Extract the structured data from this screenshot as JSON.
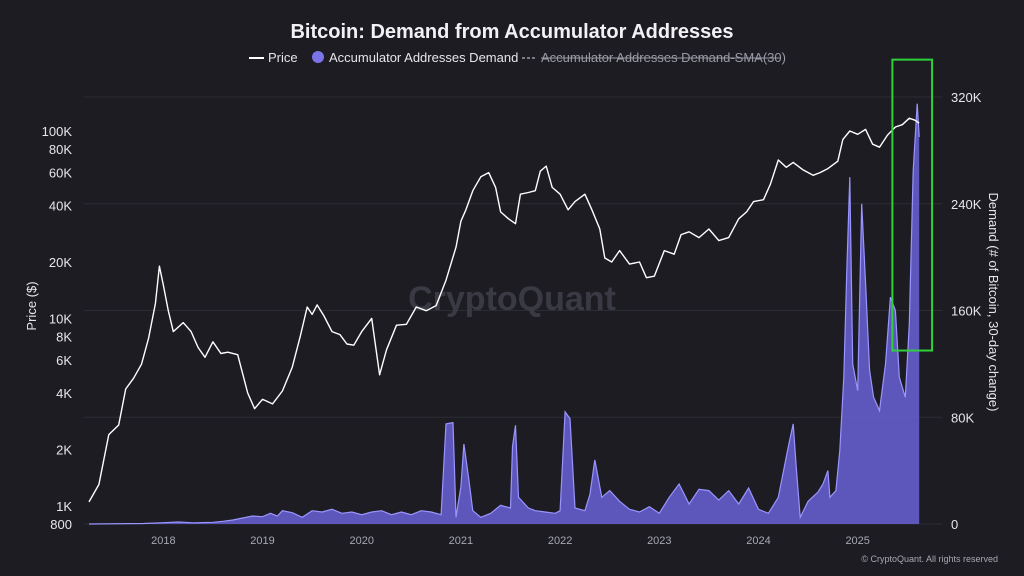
{
  "chart_data": {
    "type": "line",
    "title": "Bitcoin: Demand from Accumulator Addresses",
    "legend": [
      {
        "name": "Price",
        "style": "line",
        "color": "#ffffff"
      },
      {
        "name": "Accumulator Addresses Demand",
        "style": "area",
        "color": "#7b74e8"
      },
      {
        "name": "Accumulator Addresses Demand-SMA(30)",
        "style": "dashed",
        "color": "#9a9aa6",
        "hidden": true
      }
    ],
    "legend_position": "top-center",
    "watermark": "CryptoQuant",
    "copyright": "© CryptoQuant. All rights reserved",
    "x_axis": {
      "ticks": [
        "2018",
        "2019",
        "2020",
        "2021",
        "2022",
        "2023",
        "2024",
        "2025"
      ],
      "range": [
        2017.2,
        2025.85
      ]
    },
    "y_left": {
      "label": "Price ($)",
      "scale": "log",
      "range": [
        800,
        150000
      ],
      "ticks": [
        {
          "value": 800,
          "label": "800"
        },
        {
          "value": 1000,
          "label": "1K"
        },
        {
          "value": 2000,
          "label": "2K"
        },
        {
          "value": 4000,
          "label": "4K"
        },
        {
          "value": 6000,
          "label": "6K"
        },
        {
          "value": 8000,
          "label": "8K"
        },
        {
          "value": 10000,
          "label": "10K"
        },
        {
          "value": 20000,
          "label": "20K"
        },
        {
          "value": 40000,
          "label": "40K"
        },
        {
          "value": 60000,
          "label": "60K"
        },
        {
          "value": 80000,
          "label": "80K"
        },
        {
          "value": 100000,
          "label": "100K"
        }
      ]
    },
    "y_right": {
      "label": "Demand (# of Bitcoin, 30-day change)",
      "scale": "linear",
      "range": [
        0,
        320000
      ],
      "ticks": [
        {
          "value": 0,
          "label": "0"
        },
        {
          "value": 80000,
          "label": "80K"
        },
        {
          "value": 160000,
          "label": "160K"
        },
        {
          "value": 240000,
          "label": "240K"
        },
        {
          "value": 320000,
          "label": "320K"
        }
      ]
    },
    "grid": "horizontal",
    "highlight_box": {
      "color": "#2fd13b",
      "x_range": [
        2025.35,
        2025.75
      ],
      "y_right_range": [
        130000,
        348000
      ]
    },
    "series": [
      {
        "name": "Price",
        "axis": "left",
        "points": [
          [
            2017.25,
            1050
          ],
          [
            2017.35,
            1300
          ],
          [
            2017.45,
            2400
          ],
          [
            2017.55,
            2700
          ],
          [
            2017.62,
            4200
          ],
          [
            2017.7,
            4800
          ],
          [
            2017.78,
            5700
          ],
          [
            2017.85,
            7800
          ],
          [
            2017.92,
            12000
          ],
          [
            2017.96,
            19000
          ],
          [
            2018.0,
            15000
          ],
          [
            2018.05,
            11000
          ],
          [
            2018.1,
            8500
          ],
          [
            2018.2,
            9500
          ],
          [
            2018.28,
            8500
          ],
          [
            2018.35,
            7000
          ],
          [
            2018.42,
            6200
          ],
          [
            2018.5,
            7500
          ],
          [
            2018.58,
            6500
          ],
          [
            2018.65,
            6600
          ],
          [
            2018.75,
            6400
          ],
          [
            2018.85,
            4000
          ],
          [
            2018.92,
            3300
          ],
          [
            2019.0,
            3700
          ],
          [
            2019.1,
            3500
          ],
          [
            2019.2,
            4100
          ],
          [
            2019.3,
            5500
          ],
          [
            2019.38,
            8000
          ],
          [
            2019.45,
            11500
          ],
          [
            2019.5,
            10500
          ],
          [
            2019.55,
            11800
          ],
          [
            2019.62,
            10300
          ],
          [
            2019.7,
            8500
          ],
          [
            2019.78,
            8200
          ],
          [
            2019.85,
            7300
          ],
          [
            2019.92,
            7200
          ],
          [
            2020.0,
            8500
          ],
          [
            2020.1,
            10000
          ],
          [
            2020.18,
            5000
          ],
          [
            2020.25,
            6800
          ],
          [
            2020.35,
            9200
          ],
          [
            2020.45,
            9300
          ],
          [
            2020.55,
            11500
          ],
          [
            2020.65,
            11000
          ],
          [
            2020.75,
            11700
          ],
          [
            2020.85,
            16000
          ],
          [
            2020.95,
            24000
          ],
          [
            2021.0,
            33000
          ],
          [
            2021.05,
            38000
          ],
          [
            2021.12,
            48000
          ],
          [
            2021.2,
            57000
          ],
          [
            2021.28,
            60000
          ],
          [
            2021.35,
            50000
          ],
          [
            2021.4,
            37000
          ],
          [
            2021.48,
            34000
          ],
          [
            2021.55,
            32000
          ],
          [
            2021.6,
            46000
          ],
          [
            2021.68,
            47000
          ],
          [
            2021.75,
            48000
          ],
          [
            2021.8,
            61000
          ],
          [
            2021.86,
            65000
          ],
          [
            2021.92,
            50000
          ],
          [
            2022.0,
            46000
          ],
          [
            2022.08,
            38000
          ],
          [
            2022.15,
            42000
          ],
          [
            2022.25,
            46000
          ],
          [
            2022.32,
            38000
          ],
          [
            2022.4,
            30000
          ],
          [
            2022.45,
            21000
          ],
          [
            2022.52,
            20000
          ],
          [
            2022.6,
            23000
          ],
          [
            2022.7,
            19500
          ],
          [
            2022.8,
            20000
          ],
          [
            2022.87,
            16500
          ],
          [
            2022.95,
            16800
          ],
          [
            2023.05,
            23000
          ],
          [
            2023.15,
            22000
          ],
          [
            2023.22,
            28000
          ],
          [
            2023.3,
            29000
          ],
          [
            2023.4,
            27000
          ],
          [
            2023.5,
            30000
          ],
          [
            2023.6,
            26000
          ],
          [
            2023.7,
            27000
          ],
          [
            2023.8,
            34000
          ],
          [
            2023.88,
            37000
          ],
          [
            2023.95,
            42000
          ],
          [
            2024.05,
            43000
          ],
          [
            2024.12,
            52000
          ],
          [
            2024.2,
            70000
          ],
          [
            2024.28,
            64000
          ],
          [
            2024.35,
            68000
          ],
          [
            2024.45,
            62000
          ],
          [
            2024.55,
            58000
          ],
          [
            2024.62,
            60000
          ],
          [
            2024.7,
            63000
          ],
          [
            2024.8,
            69000
          ],
          [
            2024.85,
            90000
          ],
          [
            2024.92,
            100000
          ],
          [
            2025.0,
            96000
          ],
          [
            2025.08,
            102000
          ],
          [
            2025.15,
            85000
          ],
          [
            2025.22,
            82000
          ],
          [
            2025.3,
            95000
          ],
          [
            2025.38,
            105000
          ],
          [
            2025.45,
            108000
          ],
          [
            2025.52,
            117000
          ],
          [
            2025.58,
            114000
          ],
          [
            2025.62,
            110000
          ]
        ]
      },
      {
        "name": "Accumulator Addresses Demand",
        "axis": "right",
        "points": [
          [
            2017.25,
            0
          ],
          [
            2017.8,
            400
          ],
          [
            2018.0,
            1000
          ],
          [
            2018.15,
            1500
          ],
          [
            2018.3,
            900
          ],
          [
            2018.5,
            1300
          ],
          [
            2018.6,
            2000
          ],
          [
            2018.7,
            3000
          ],
          [
            2018.8,
            4500
          ],
          [
            2018.9,
            6000
          ],
          [
            2019.0,
            5500
          ],
          [
            2019.08,
            8000
          ],
          [
            2019.15,
            6000
          ],
          [
            2019.2,
            10000
          ],
          [
            2019.3,
            8500
          ],
          [
            2019.4,
            5000
          ],
          [
            2019.5,
            10000
          ],
          [
            2019.6,
            9000
          ],
          [
            2019.7,
            11000
          ],
          [
            2019.8,
            8000
          ],
          [
            2019.9,
            9000
          ],
          [
            2020.0,
            7000
          ],
          [
            2020.1,
            9000
          ],
          [
            2020.2,
            10000
          ],
          [
            2020.3,
            7000
          ],
          [
            2020.4,
            9000
          ],
          [
            2020.5,
            7000
          ],
          [
            2020.6,
            10000
          ],
          [
            2020.7,
            9000
          ],
          [
            2020.8,
            7000
          ],
          [
            2020.85,
            75000
          ],
          [
            2020.92,
            76000
          ],
          [
            2020.95,
            5000
          ],
          [
            2021.0,
            28000
          ],
          [
            2021.03,
            60000
          ],
          [
            2021.08,
            33000
          ],
          [
            2021.12,
            10000
          ],
          [
            2021.2,
            5000
          ],
          [
            2021.3,
            8000
          ],
          [
            2021.4,
            14000
          ],
          [
            2021.5,
            12000
          ],
          [
            2021.52,
            58000
          ],
          [
            2021.55,
            74000
          ],
          [
            2021.58,
            20000
          ],
          [
            2021.68,
            12000
          ],
          [
            2021.75,
            10000
          ],
          [
            2021.85,
            9000
          ],
          [
            2021.95,
            8000
          ],
          [
            2022.0,
            10000
          ],
          [
            2022.05,
            84000
          ],
          [
            2022.1,
            79000
          ],
          [
            2022.15,
            12000
          ],
          [
            2022.25,
            10000
          ],
          [
            2022.3,
            22000
          ],
          [
            2022.35,
            48000
          ],
          [
            2022.42,
            20000
          ],
          [
            2022.5,
            25000
          ],
          [
            2022.6,
            17000
          ],
          [
            2022.7,
            11000
          ],
          [
            2022.8,
            9000
          ],
          [
            2022.9,
            13000
          ],
          [
            2023.0,
            8000
          ],
          [
            2023.1,
            20000
          ],
          [
            2023.2,
            30000
          ],
          [
            2023.3,
            15000
          ],
          [
            2023.4,
            26000
          ],
          [
            2023.5,
            25000
          ],
          [
            2023.6,
            18000
          ],
          [
            2023.7,
            25000
          ],
          [
            2023.8,
            15000
          ],
          [
            2023.9,
            27000
          ],
          [
            2024.0,
            11000
          ],
          [
            2024.1,
            8000
          ],
          [
            2024.2,
            20000
          ],
          [
            2024.2,
            20000
          ],
          [
            2024.3,
            58000
          ],
          [
            2024.35,
            75000
          ],
          [
            2024.38,
            43000
          ],
          [
            2024.42,
            5000
          ],
          [
            2024.5,
            17000
          ],
          [
            2024.6,
            24000
          ],
          [
            2024.65,
            30000
          ],
          [
            2024.7,
            40000
          ],
          [
            2024.72,
            20000
          ],
          [
            2024.78,
            25000
          ],
          [
            2024.82,
            55000
          ],
          [
            2024.86,
            110000
          ],
          [
            2024.89,
            190000
          ],
          [
            2024.92,
            260000
          ],
          [
            2024.95,
            120000
          ],
          [
            2025.0,
            100000
          ],
          [
            2025.04,
            240000
          ],
          [
            2025.08,
            180000
          ],
          [
            2025.12,
            115000
          ],
          [
            2025.16,
            95000
          ],
          [
            2025.22,
            85000
          ],
          [
            2025.28,
            120000
          ],
          [
            2025.33,
            170000
          ],
          [
            2025.38,
            160000
          ],
          [
            2025.42,
            110000
          ],
          [
            2025.48,
            95000
          ],
          [
            2025.52,
            150000
          ],
          [
            2025.56,
            265000
          ],
          [
            2025.6,
            315000
          ],
          [
            2025.62,
            290000
          ]
        ]
      }
    ]
  }
}
